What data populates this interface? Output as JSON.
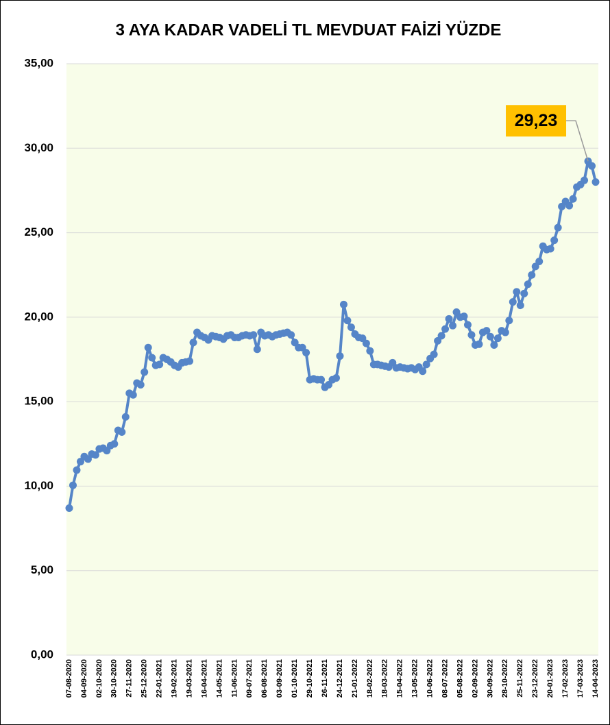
{
  "chart_data": {
    "type": "line",
    "title": "3 AYA KADAR VADELİ TL MEVDUAT FAİZİ YÜZDE",
    "categories": [
      "07-08-2020",
      null,
      null,
      null,
      "04-09-2020",
      null,
      null,
      null,
      "02-10-2020",
      null,
      null,
      null,
      "30-10-2020",
      null,
      null,
      null,
      "27-11-2020",
      null,
      null,
      null,
      "25-12-2020",
      null,
      null,
      null,
      "22-01-2021",
      null,
      null,
      null,
      "19-02-2021",
      null,
      null,
      null,
      "19-03-2021",
      null,
      null,
      null,
      "16-04-2021",
      null,
      null,
      null,
      "14-05-2021",
      null,
      null,
      null,
      "11-06-2021",
      null,
      null,
      null,
      "09-07-2021",
      null,
      null,
      null,
      "06-08-2021",
      null,
      null,
      null,
      "03-09-2021",
      null,
      null,
      null,
      "01-10-2021",
      null,
      null,
      null,
      "29-10-2021",
      null,
      null,
      null,
      "26-11-2021",
      null,
      null,
      null,
      "24-12-2021",
      null,
      null,
      null,
      "21-01-2022",
      null,
      null,
      null,
      "18-02-2022",
      null,
      null,
      null,
      "18-03-2022",
      null,
      null,
      null,
      "15-04-2022",
      null,
      null,
      null,
      "13-05-2022",
      null,
      null,
      null,
      "10-06-2022",
      null,
      null,
      null,
      "08-07-2022",
      null,
      null,
      null,
      "05-08-2022",
      null,
      null,
      null,
      "02-09-2022",
      null,
      null,
      null,
      "30-09-2022",
      null,
      null,
      null,
      "28-10-2022",
      null,
      null,
      null,
      "25-11-2022",
      null,
      null,
      null,
      "23-12-2022",
      null,
      null,
      null,
      "20-01-2023",
      null,
      null,
      null,
      "17-02-2023",
      null,
      null,
      null,
      "17-03-2023",
      null,
      null,
      null,
      "14-04-2023"
    ],
    "values": [
      8.7,
      10.05,
      10.95,
      11.45,
      11.75,
      11.6,
      11.9,
      11.85,
      12.2,
      12.25,
      12.1,
      12.4,
      12.5,
      13.3,
      13.2,
      14.1,
      15.5,
      15.4,
      16.1,
      16.0,
      16.75,
      18.2,
      17.6,
      17.15,
      17.2,
      17.6,
      17.5,
      17.35,
      17.15,
      17.05,
      17.3,
      17.35,
      17.4,
      18.5,
      19.1,
      18.9,
      18.8,
      18.65,
      18.9,
      18.85,
      18.8,
      18.7,
      18.9,
      18.95,
      18.8,
      18.8,
      18.9,
      18.95,
      18.9,
      18.95,
      18.1,
      19.1,
      18.9,
      18.95,
      18.85,
      18.95,
      19.0,
      19.05,
      19.1,
      18.95,
      18.5,
      18.2,
      18.2,
      17.9,
      16.3,
      16.35,
      16.3,
      16.3,
      15.85,
      16.0,
      16.3,
      16.4,
      17.7,
      20.75,
      19.8,
      19.4,
      19.0,
      18.8,
      18.75,
      18.45,
      18.0,
      17.2,
      17.2,
      17.15,
      17.1,
      17.05,
      17.3,
      17.0,
      17.05,
      17.0,
      16.95,
      17.0,
      16.9,
      17.05,
      16.8,
      17.2,
      17.55,
      17.8,
      18.6,
      18.9,
      19.3,
      19.9,
      19.5,
      20.3,
      20.0,
      20.05,
      19.55,
      18.95,
      18.35,
      18.4,
      19.1,
      19.2,
      18.85,
      18.35,
      18.75,
      19.2,
      19.1,
      19.8,
      20.9,
      21.5,
      20.7,
      21.4,
      21.95,
      22.5,
      23.0,
      23.3,
      24.2,
      24.0,
      24.05,
      24.55,
      25.3,
      26.55,
      26.85,
      26.6,
      27.0,
      27.7,
      27.85,
      28.1,
      29.23,
      28.95,
      28.0
    ],
    "value_labels": [
      null,
      null,
      null,
      null,
      null,
      null,
      null,
      null,
      null,
      null,
      null,
      null,
      null,
      null,
      null,
      null,
      null,
      null,
      null,
      null,
      null,
      null,
      null,
      null,
      null,
      null,
      null,
      null,
      null,
      null,
      null,
      null,
      null,
      null,
      null,
      null,
      null,
      null,
      null,
      null,
      null,
      null,
      null,
      null,
      null,
      null,
      null,
      null,
      null,
      null,
      null,
      null,
      null,
      null,
      null,
      null,
      null,
      null,
      null,
      null,
      null,
      null,
      null,
      null,
      null,
      null,
      null,
      null,
      null,
      null,
      null,
      null,
      null,
      null,
      null,
      null,
      null,
      null,
      null,
      null,
      null,
      null,
      null,
      null,
      null,
      null,
      null,
      null,
      null,
      null,
      null,
      null,
      null,
      null,
      null,
      null,
      null,
      null,
      null,
      null,
      null,
      null,
      null,
      null,
      null,
      null,
      null,
      null,
      null,
      null,
      null,
      null,
      null,
      null,
      null,
      null,
      null,
      null,
      null,
      null,
      null,
      null,
      null,
      null,
      null,
      null,
      null,
      null,
      null,
      null,
      null,
      null,
      null,
      null,
      null,
      null,
      null,
      null,
      "29,23",
      null,
      null
    ],
    "color": "#5585c8",
    "ylim": [
      0,
      35
    ],
    "yticks": [
      {
        "value": 0,
        "label": "0,00"
      },
      {
        "value": 5,
        "label": "5,00"
      },
      {
        "value": 10,
        "label": "10,00"
      },
      {
        "value": 15,
        "label": "15,00"
      },
      {
        "value": 20,
        "label": "20,00"
      },
      {
        "value": 25,
        "label": "25,00"
      },
      {
        "value": 30,
        "label": "30,00"
      },
      {
        "value": 35,
        "label": "35,00"
      }
    ],
    "grid": true
  }
}
